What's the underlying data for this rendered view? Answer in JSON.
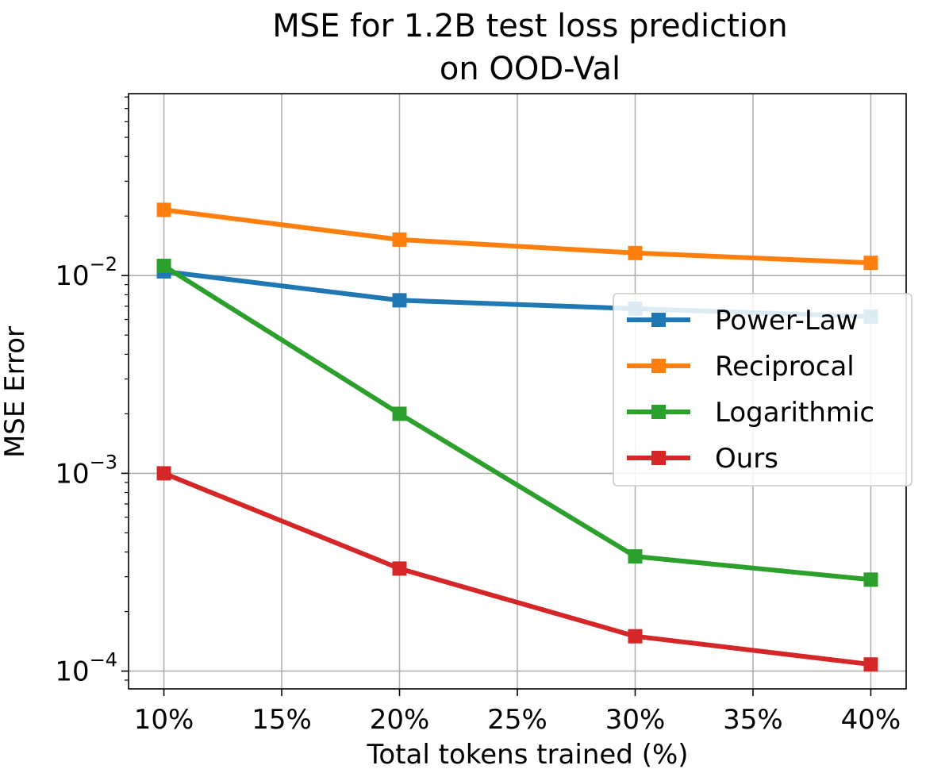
{
  "chart_data": {
    "type": "line",
    "title": [
      "MSE for 1.2B test loss prediction",
      "on OOD-Val"
    ],
    "xlabel": "Total tokens trained (%)",
    "ylabel": "MSE Error",
    "yscale": "log",
    "xlim": [
      8.5,
      41.5
    ],
    "ylim_log10": [
      -4.09,
      -1.08
    ],
    "x_ticks": [
      10,
      15,
      20,
      25,
      30,
      35,
      40
    ],
    "x_tick_labels": [
      "10%",
      "15%",
      "20%",
      "25%",
      "30%",
      "35%",
      "40%"
    ],
    "y_ticks": [
      {
        "base": "10",
        "exp": "−4",
        "value": 0.0001
      },
      {
        "base": "10",
        "exp": "−3",
        "value": 0.001
      },
      {
        "base": "10",
        "exp": "−2",
        "value": 0.01
      }
    ],
    "grid": true,
    "legend_position": "center-right",
    "x": [
      10,
      20,
      30,
      40
    ],
    "series": [
      {
        "name": "Power-Law",
        "color": "#1f77b4",
        "values": [
          0.0105,
          0.0075,
          0.0068,
          0.0062
        ]
      },
      {
        "name": "Reciprocal",
        "color": "#ff7f0e",
        "values": [
          0.0215,
          0.0152,
          0.013,
          0.0116
        ]
      },
      {
        "name": "Logarithmic",
        "color": "#2ca02c",
        "values": [
          0.0112,
          0.002,
          0.00038,
          0.00029
        ]
      },
      {
        "name": "Ours",
        "color": "#d62728",
        "values": [
          0.001,
          0.00033,
          0.00015,
          0.000108
        ]
      }
    ]
  }
}
